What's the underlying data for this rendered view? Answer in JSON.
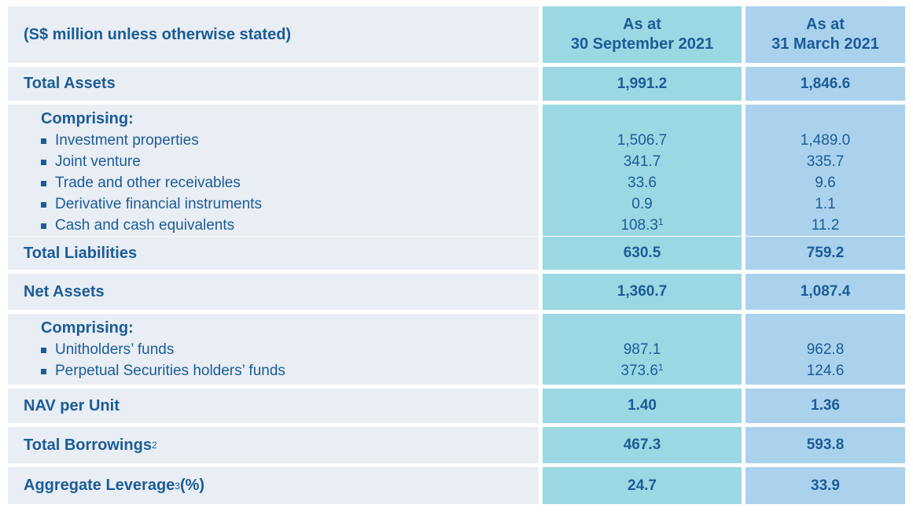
{
  "colors": {
    "text": "#1b5c97",
    "label_column_bg": "#e9edf4",
    "sep2021_column_bg": "#9cd8e3",
    "mar2021_column_bg": "#abd2ed",
    "page_bg": "#ffffff"
  },
  "header": {
    "row_label": "(S$ million unless otherwise stated)",
    "sep_col": {
      "line1": "As at",
      "line2": "30 September 2021"
    },
    "mar_col": {
      "line1": "As at",
      "line2": "31 March 2021"
    }
  },
  "rows": {
    "total_assets": {
      "label": "Total Assets",
      "sep": "1,991.2",
      "mar": "1,846.6"
    },
    "comprising_assets": {
      "label": "Comprising:",
      "items": [
        {
          "label": "Investment properties",
          "sep": "1,506.7",
          "mar": "1,489.0"
        },
        {
          "label": "Joint venture",
          "sep": "341.7",
          "mar": "335.7"
        },
        {
          "label": "Trade and other receivables",
          "sep": "33.6",
          "mar": "9.6"
        },
        {
          "label": "Derivative financial instruments",
          "sep": "0.9",
          "mar": "1.1"
        },
        {
          "label": "Cash and cash equivalents",
          "sep": "108.3",
          "sep_sup": "1",
          "mar": "11.2"
        }
      ]
    },
    "total_liabilities": {
      "label": "Total Liabilities",
      "sep": "630.5",
      "mar": "759.2"
    },
    "net_assets": {
      "label": "Net Assets",
      "sep": "1,360.7",
      "mar": "1,087.4"
    },
    "comprising_funds": {
      "label": "Comprising:",
      "items": [
        {
          "label": "Unitholders’ funds",
          "sep": "987.1",
          "mar": "962.8"
        },
        {
          "label": "Perpetual Securities holders’ funds",
          "sep": "373.6",
          "sep_sup": "1",
          "mar": "124.6"
        }
      ]
    },
    "nav_per_unit": {
      "label": "NAV per Unit",
      "sep": "1.40",
      "mar": "1.36"
    },
    "total_borrowings": {
      "label": "Total Borrowings",
      "label_sup": "2",
      "sep": "467.3",
      "mar": "593.8"
    },
    "aggregate_leverage": {
      "label": "Aggregate Leverage",
      "label_sup": "3",
      "label_post": " (%)",
      "sep": "24.7",
      "mar": "33.9"
    }
  }
}
